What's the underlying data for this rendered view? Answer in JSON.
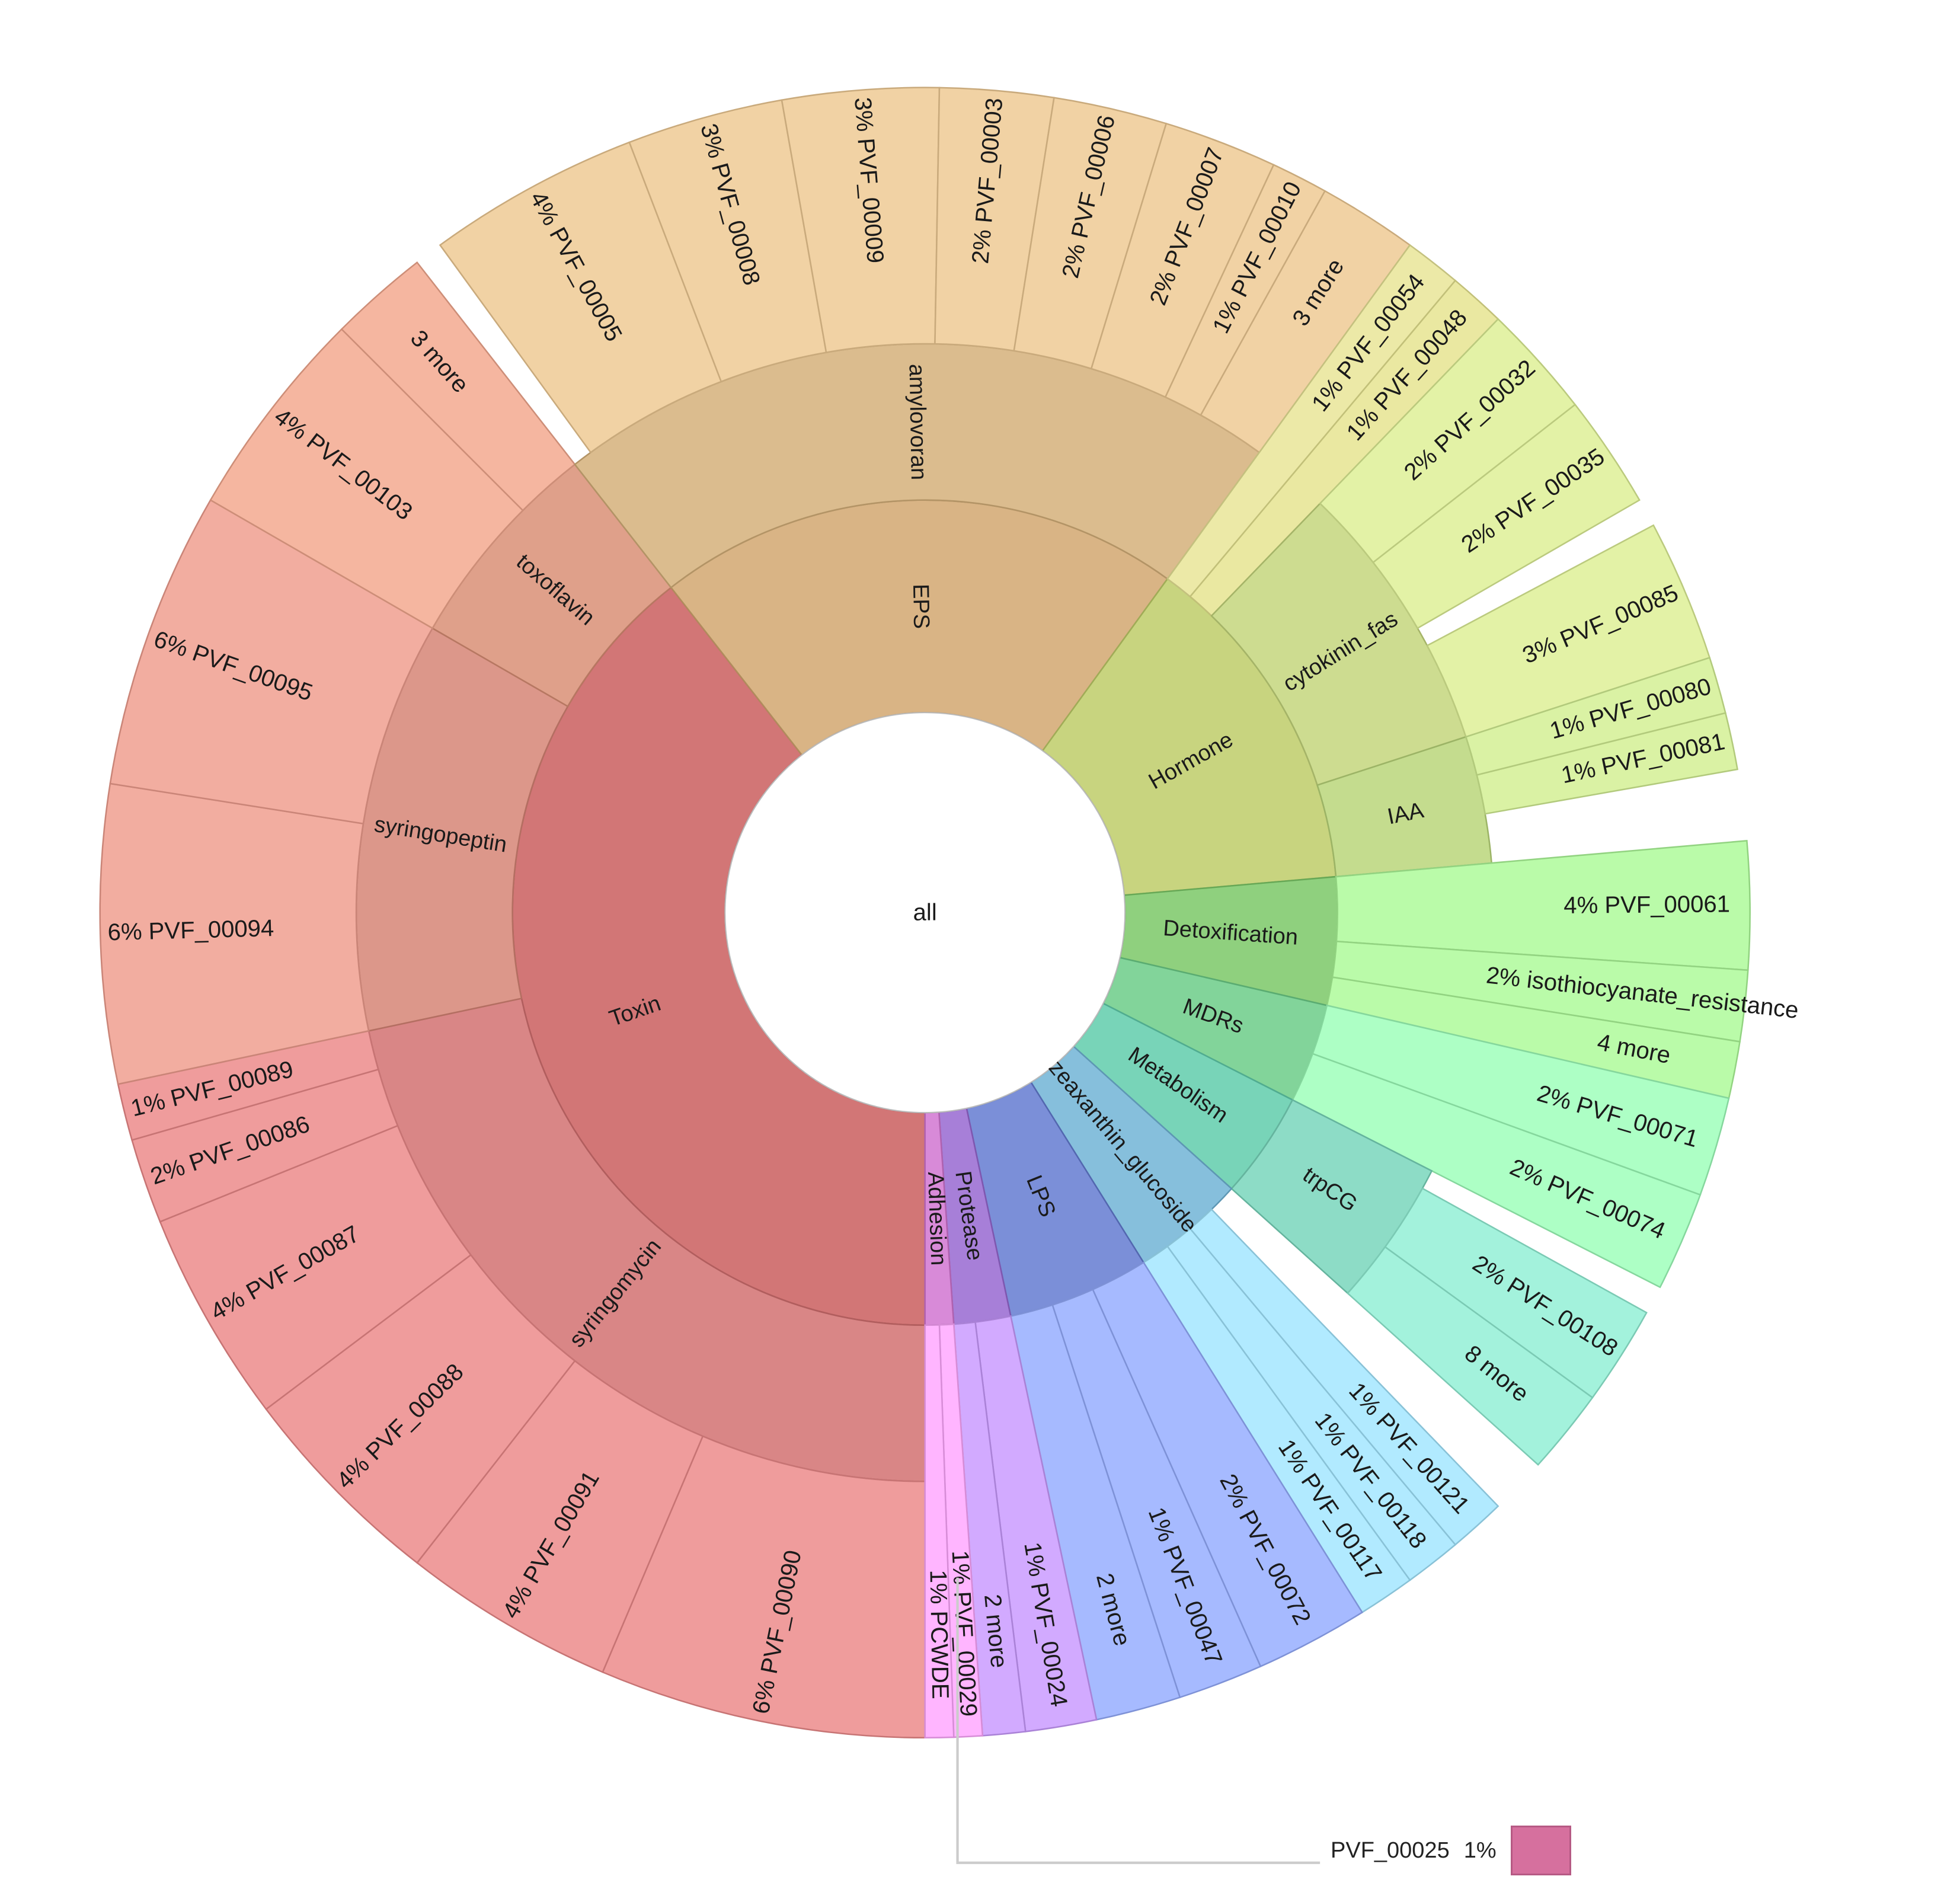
{
  "chart_data": {
    "type": "sunburst",
    "title": "",
    "center_label": "all",
    "rings": [
      "category",
      "subcategory",
      "gene"
    ],
    "categories": [
      {
        "name": "Toxin",
        "color": "#d27676",
        "start": 180,
        "end": 322,
        "children": [
          {
            "name": "syringomycin",
            "color": "#d98686",
            "start": 180,
            "end": 258,
            "children": [
              {
                "name": "PVF_00090",
                "pct": "6%",
                "start": 180,
                "end": 203
              },
              {
                "name": "PVF_00091",
                "pct": "4%",
                "start": 203,
                "end": 218
              },
              {
                "name": "PVF_00088",
                "pct": "4%",
                "start": 218,
                "end": 233
              },
              {
                "name": "PVF_00087",
                "pct": "4%",
                "start": 233,
                "end": 248
              },
              {
                "name": "PVF_00086",
                "pct": "2%",
                "start": 248,
                "end": 254
              },
              {
                "name": "PVF_00089",
                "pct": "1%",
                "start": 254,
                "end": 258
              }
            ]
          },
          {
            "name": "syringopeptin",
            "color": "#dc978a",
            "start": 258,
            "end": 300,
            "children": [
              {
                "name": "PVF_00094",
                "pct": "6%",
                "start": 258,
                "end": 279
              },
              {
                "name": "PVF_00095",
                "pct": "6%",
                "start": 279,
                "end": 300
              }
            ]
          },
          {
            "name": "toxoflavin",
            "color": "#dfa08a",
            "start": 300,
            "end": 322,
            "children": [
              {
                "name": "PVF_00103",
                "pct": "4%",
                "start": 300,
                "end": 315
              },
              {
                "name": "3 more",
                "pct": "",
                "start": 315,
                "end": 322
              }
            ]
          }
        ]
      },
      {
        "name": "EPS",
        "color": "#d9b485",
        "start": 322,
        "end": 396,
        "children": [
          {
            "name": "amylovoran",
            "color": "#dbbc8e",
            "start": 322,
            "end": 396,
            "children": [
              {
                "name": "PVF_00005",
                "pct": "4%",
                "start": 324,
                "end": 339
              },
              {
                "name": "PVF_00008",
                "pct": "3%",
                "start": 339,
                "end": 350
              },
              {
                "name": "PVF_00009",
                "pct": "3%",
                "start": 350,
                "end": 361
              },
              {
                "name": "PVF_00003",
                "pct": "2%",
                "start": 361,
                "end": 369
              },
              {
                "name": "PVF_00006",
                "pct": "2%",
                "start": 369,
                "end": 377
              },
              {
                "name": "PVF_00007",
                "pct": "2%",
                "start": 377,
                "end": 385
              },
              {
                "name": "PVF_00010",
                "pct": "1%",
                "start": 385,
                "end": 389
              },
              {
                "name": "3 more",
                "pct": "",
                "start": 389,
                "end": 396
              }
            ]
          }
        ]
      },
      {
        "name": "Hormone",
        "color": "#c8d47f",
        "start": 396,
        "end": 445,
        "children": [
          {
            "name": "PVF_00054",
            "pct": "1%",
            "color": "#dad795",
            "start": 396,
            "end": 400
          },
          {
            "name": "PVF_00048",
            "pct": "1%",
            "color": "#d8d68f",
            "start": 400,
            "end": 404
          },
          {
            "name": "cytokinin_fas",
            "color": "#cddc90",
            "start": 404,
            "end": 432,
            "children": [
              {
                "name": "PVF_00032",
                "pct": "2%",
                "start": 404,
                "end": 412
              },
              {
                "name": "PVF_00035",
                "pct": "2%",
                "start": 412,
                "end": 420
              },
              {
                "name": "PVF_00085",
                "pct": "3%",
                "start": 422,
                "end": 432
              }
            ]
          },
          {
            "name": "IAA",
            "color": "#c4dc8e",
            "start": 432,
            "end": 445,
            "children": [
              {
                "name": "PVF_00080",
                "pct": "1%",
                "start": 432,
                "end": 436
              },
              {
                "name": "PVF_00081",
                "pct": "1%",
                "start": 436,
                "end": 440
              }
            ]
          }
        ]
      },
      {
        "name": "Detoxification",
        "color": "#8fd07e",
        "start": 445,
        "end": 463,
        "children": [
          {
            "name": "PVF_00061",
            "pct": "4%",
            "start": 445,
            "end": 454
          },
          {
            "name": "isothiocyanate_resistance",
            "pct": "2%",
            "start": 454,
            "end": 459
          },
          {
            "name": "4 more",
            "pct": "",
            "start": 459,
            "end": 463
          }
        ]
      },
      {
        "name": "MDRs",
        "color": "#82d49a",
        "start": 463,
        "end": 477,
        "children": [
          {
            "name": "PVF_00071",
            "pct": "2%",
            "start": 463,
            "end": 470
          },
          {
            "name": "PVF_00074",
            "pct": "2%",
            "start": 470,
            "end": 477
          }
        ]
      },
      {
        "name": "Metabolism",
        "color": "#78d4b8",
        "start": 477,
        "end": 492,
        "children": [
          {
            "name": "trpCG",
            "color": "#8ddcc6",
            "start": 477,
            "end": 492,
            "children": [
              {
                "name": "PVF_00108",
                "pct": "2%",
                "start": 479,
                "end": 486
              },
              {
                "name": "8 more",
                "pct": "",
                "start": 486,
                "end": 492
              }
            ]
          }
        ]
      },
      {
        "name": "zeaxanthin_glucoside",
        "color": "#86bfdc",
        "start": 492,
        "end": 508,
        "children": [
          {
            "name": "PVF_00121",
            "pct": "1%",
            "start": 496,
            "end": 500
          },
          {
            "name": "PVF_00118",
            "pct": "1%",
            "start": 500,
            "end": 504
          },
          {
            "name": "PVF_00117",
            "pct": "1%",
            "start": 504,
            "end": 508
          }
        ]
      },
      {
        "name": "LPS",
        "color": "#7b8fd8",
        "start": 508,
        "end": 528,
        "children": [
          {
            "name": "PVF_00072",
            "pct": "2%",
            "start": 508,
            "end": 516
          },
          {
            "name": "PVF_00047",
            "pct": "1%",
            "start": 516,
            "end": 522
          },
          {
            "name": "2 more",
            "pct": "",
            "start": 522,
            "end": 528
          }
        ]
      },
      {
        "name": "Protease",
        "color": "#a77fd8",
        "start": 528,
        "end": 536,
        "children": [
          {
            "name": "PVF_00024",
            "pct": "1%",
            "start": 528,
            "end": 533
          },
          {
            "name": "2 more",
            "pct": "",
            "start": 533,
            "end": 536
          }
        ]
      },
      {
        "name": "Adhesion",
        "color": "#d88ad8",
        "start": 536,
        "end": 540,
        "children": [
          {
            "name": "PVF_00029",
            "pct": "1%",
            "start": 536,
            "end": 538
          },
          {
            "name": "PCWDE",
            "pct": "1%",
            "start": 538,
            "end": 540
          }
        ]
      }
    ],
    "tooltip": {
      "label": "PVF_00025",
      "pct": "1%",
      "color": "#d6709e"
    }
  },
  "legend": {
    "label": "PVF_00025",
    "pct": "1%"
  }
}
